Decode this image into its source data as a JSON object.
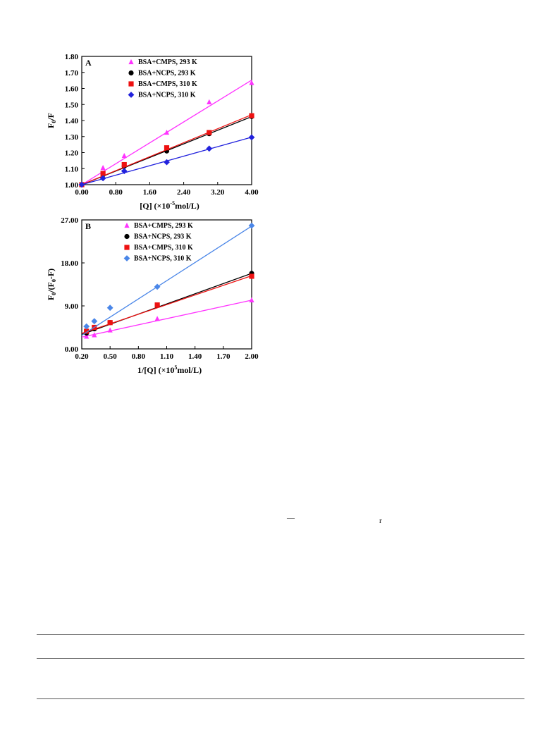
{
  "chart_data": [
    {
      "panel_label": "A",
      "type": "scatter",
      "xlim": [
        0.0,
        4.0
      ],
      "ylim": [
        1.0,
        1.8
      ],
      "xticks": [
        "0.00",
        "0.80",
        "1.60",
        "2.40",
        "3.20",
        "4.00"
      ],
      "yticks": [
        "1.00",
        "1.10",
        "1.20",
        "1.30",
        "1.40",
        "1.50",
        "1.60",
        "1.70",
        "1.80"
      ],
      "xlabel": {
        "pre": "[Q] (×10",
        "sup": "-5",
        "post": "mol/L)"
      },
      "ylabel": {
        "pre": "F",
        "sub": "0",
        "post": "/F"
      },
      "legend_position": "top-left",
      "series": [
        {
          "name": "BSA+CMPS, 293 K",
          "color": "#ff33ff",
          "marker": "triangle",
          "x": [
            0.0,
            0.5,
            1.0,
            2.0,
            3.0,
            4.0
          ],
          "y": [
            1.0,
            1.105,
            1.18,
            1.325,
            1.515,
            1.635
          ],
          "fit": [
            1.0,
            0.163
          ]
        },
        {
          "name": "BSA+NCPS, 293 K",
          "color": "#000000",
          "marker": "circle",
          "x": [
            0.0,
            0.5,
            1.0,
            2.0,
            3.0,
            4.0
          ],
          "y": [
            1.0,
            1.062,
            1.115,
            1.21,
            1.318,
            1.425
          ],
          "fit": [
            1.0,
            0.106
          ]
        },
        {
          "name": "BSA+CMPS, 310 K",
          "color": "#ee1111",
          "marker": "square",
          "x": [
            0.0,
            0.5,
            1.0,
            2.0,
            3.0,
            4.0
          ],
          "y": [
            1.0,
            1.07,
            1.125,
            1.23,
            1.325,
            1.43
          ],
          "fit": [
            1.0,
            0.109
          ]
        },
        {
          "name": "BSA+NCPS,  310 K",
          "color": "#2222dd",
          "marker": "diamond",
          "x": [
            0.0,
            0.5,
            1.0,
            2.0,
            3.0,
            4.0
          ],
          "y": [
            1.0,
            1.04,
            1.085,
            1.14,
            1.225,
            1.295
          ],
          "fit": [
            1.0,
            0.074
          ]
        }
      ]
    },
    {
      "panel_label": "B",
      "type": "scatter",
      "xlim": [
        0.2,
        2.0
      ],
      "ylim": [
        0.0,
        27.0
      ],
      "xticks": [
        "0.20",
        "0.50",
        "0.80",
        "1.10",
        "1.40",
        "1.70",
        "2.00"
      ],
      "yticks": [
        "0.00",
        "9.00",
        "18.00",
        "27.00"
      ],
      "xlabel": {
        "pre": "1/[Q] (×10",
        "sup": "5",
        "post": "mol/L)"
      },
      "ylabel": {
        "pre": "F",
        "sub": "0",
        "post": "/(F",
        "sub2": "0",
        "post2": "-F)"
      },
      "legend_position": "top-left",
      "series": [
        {
          "name": "BSA+CMPS, 293 K",
          "color": "#ff33ff",
          "marker": "triangle",
          "x": [
            0.25,
            0.333,
            0.5,
            1.0,
            2.0
          ],
          "y": [
            2.6,
            2.9,
            3.9,
            6.3,
            10.2
          ],
          "fit": [
            1.6,
            4.3
          ]
        },
        {
          "name": "BSA+NCPS, 293 K",
          "color": "#000000",
          "marker": "circle",
          "x": [
            0.25,
            0.333,
            0.5,
            1.0,
            2.0
          ],
          "y": [
            3.3,
            4.2,
            5.5,
            9.1,
            15.8
          ],
          "fit": [
            1.6,
            7.1
          ]
        },
        {
          "name": "BSA+CMPS, 310 K",
          "color": "#ee1111",
          "marker": "square",
          "x": [
            0.25,
            0.333,
            0.5,
            1.0,
            2.0
          ],
          "y": [
            3.7,
            4.5,
            5.5,
            9.2,
            15.2
          ],
          "fit": [
            1.9,
            6.7
          ]
        },
        {
          "name": "BSA+NCPS,  310 K",
          "color": "#4a86e8",
          "marker": "diamond",
          "x": [
            0.25,
            0.333,
            0.5,
            1.0,
            2.0
          ],
          "y": [
            4.7,
            5.8,
            8.6,
            13.0,
            25.8
          ],
          "fit": [
            0.3,
            12.7
          ]
        }
      ]
    }
  ],
  "text_fragments": {
    "dash": "—",
    "glyph": "r"
  }
}
